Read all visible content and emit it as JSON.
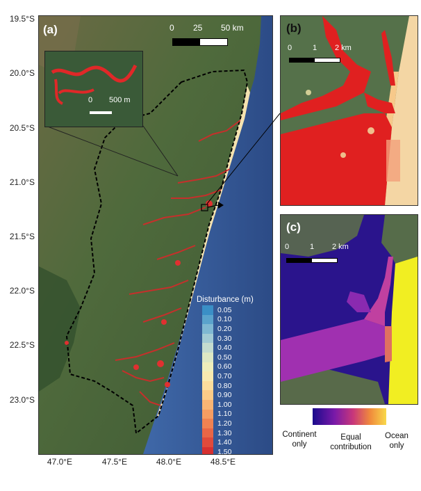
{
  "map": {
    "panel_a_label": "(a)",
    "panel_b_label": "(b)",
    "panel_c_label": "(c)",
    "lat_labels": [
      "19.5°S",
      "20.0°S",
      "20.5°S",
      "21.0°S",
      "21.5°S",
      "22.0°S",
      "22.5°S",
      "23.0°S"
    ],
    "lon_labels": [
      "47.0°E",
      "47.5°E",
      "48.0°E",
      "48.5°E"
    ],
    "scale_a": {
      "ticks": [
        "0",
        "25",
        "50 km"
      ]
    },
    "inset_scale": {
      "ticks": [
        "0",
        "500 m"
      ]
    },
    "scale_b": {
      "ticks": [
        "0",
        "1",
        "2 km"
      ]
    },
    "scale_c": {
      "ticks": [
        "0",
        "1",
        "2 km"
      ]
    }
  },
  "disturbance_legend": {
    "title": "Disturbance (m)",
    "entries": [
      {
        "value": "0.05",
        "color": "#3a8fc6"
      },
      {
        "value": "0.10",
        "color": "#5aa3cc"
      },
      {
        "value": "0.20",
        "color": "#7fb8d2"
      },
      {
        "value": "0.30",
        "color": "#a3cbd4"
      },
      {
        "value": "0.40",
        "color": "#c4dccf"
      },
      {
        "value": "0.50",
        "color": "#dde8c4"
      },
      {
        "value": "0.60",
        "color": "#eeeebb"
      },
      {
        "value": "0.70",
        "color": "#f8eab0"
      },
      {
        "value": "0.80",
        "color": "#fbdd9d"
      },
      {
        "value": "0.90",
        "color": "#fbcb88"
      },
      {
        "value": "1.00",
        "color": "#f9b574"
      },
      {
        "value": "1.10",
        "color": "#f69d62"
      },
      {
        "value": "1.20",
        "color": "#f08252"
      },
      {
        "value": "1.30",
        "color": "#e96646"
      },
      {
        "value": "1.40",
        "color": "#e04a3b"
      },
      {
        "value": "1.50",
        "color": "#d63030"
      }
    ]
  },
  "contribution_colorbar": {
    "labels": [
      "Continent only",
      "Equal contribution",
      "Ocean only"
    ]
  }
}
